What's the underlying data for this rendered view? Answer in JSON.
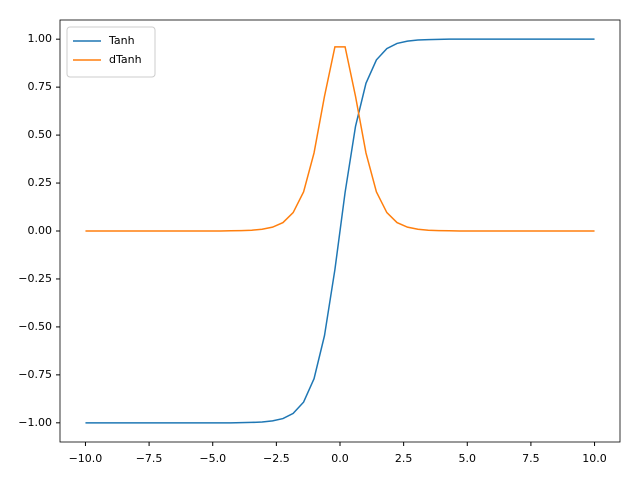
{
  "chart_data": {
    "type": "line",
    "x": [
      -10,
      -9.59,
      -9.18,
      -8.78,
      -8.37,
      -7.96,
      -7.55,
      -7.14,
      -6.73,
      -6.33,
      -5.92,
      -5.51,
      -5.1,
      -4.69,
      -4.29,
      -3.88,
      -3.47,
      -3.06,
      -2.65,
      -2.24,
      -1.84,
      -1.43,
      -1.02,
      -0.61,
      -0.2,
      0.2,
      0.61,
      1.02,
      1.43,
      1.84,
      2.24,
      2.65,
      3.06,
      3.47,
      3.88,
      4.29,
      4.69,
      5.1,
      5.51,
      5.92,
      6.33,
      6.73,
      7.14,
      7.55,
      7.96,
      8.37,
      8.78,
      9.18,
      9.59,
      10
    ],
    "series": [
      {
        "name": "Tanh",
        "color": "#1f77b4",
        "values": [
          -1,
          -1,
          -1,
          -1,
          -1,
          -1,
          -1,
          -1,
          -1,
          -1,
          -1,
          -1,
          -1,
          -1,
          -1,
          -0.999,
          -0.998,
          -0.996,
          -0.99,
          -0.978,
          -0.951,
          -0.892,
          -0.77,
          -0.546,
          -0.201,
          0.201,
          0.546,
          0.77,
          0.892,
          0.951,
          0.978,
          0.99,
          0.996,
          0.998,
          0.999,
          1,
          1,
          1,
          1,
          1,
          1,
          1,
          1,
          1,
          1,
          1,
          1,
          1,
          1,
          1
        ]
      },
      {
        "name": "dTanh",
        "color": "#ff7f0e",
        "values": [
          0,
          0,
          0,
          0,
          0,
          0,
          0,
          0,
          0,
          0,
          0,
          0,
          0,
          0,
          0.001,
          0.002,
          0.004,
          0.009,
          0.02,
          0.044,
          0.096,
          0.204,
          0.407,
          0.702,
          0.96,
          0.96,
          0.702,
          0.407,
          0.204,
          0.096,
          0.044,
          0.02,
          0.009,
          0.004,
          0.002,
          0.001,
          0,
          0,
          0,
          0,
          0,
          0,
          0,
          0,
          0,
          0,
          0,
          0,
          0,
          0
        ]
      }
    ],
    "xlim": [
      -11,
      11
    ],
    "ylim": [
      -1.1,
      1.1
    ],
    "xticks": [
      {
        "value": -10,
        "label": "−10.0"
      },
      {
        "value": -7.5,
        "label": "−7.5"
      },
      {
        "value": -5,
        "label": "−5.0"
      },
      {
        "value": -2.5,
        "label": "−2.5"
      },
      {
        "value": 0,
        "label": "0.0"
      },
      {
        "value": 2.5,
        "label": "2.5"
      },
      {
        "value": 5,
        "label": "5.0"
      },
      {
        "value": 7.5,
        "label": "7.5"
      },
      {
        "value": 10,
        "label": "10.0"
      }
    ],
    "yticks": [
      {
        "value": -1,
        "label": "−1.00"
      },
      {
        "value": -0.75,
        "label": "−0.75"
      },
      {
        "value": -0.5,
        "label": "−0.50"
      },
      {
        "value": -0.25,
        "label": "−0.25"
      },
      {
        "value": 0,
        "label": "0.00"
      },
      {
        "value": 0.25,
        "label": "0.25"
      },
      {
        "value": 0.5,
        "label": "0.50"
      },
      {
        "value": 0.75,
        "label": "0.75"
      },
      {
        "value": 1,
        "label": "1.00"
      }
    ],
    "legend": "upper left"
  }
}
